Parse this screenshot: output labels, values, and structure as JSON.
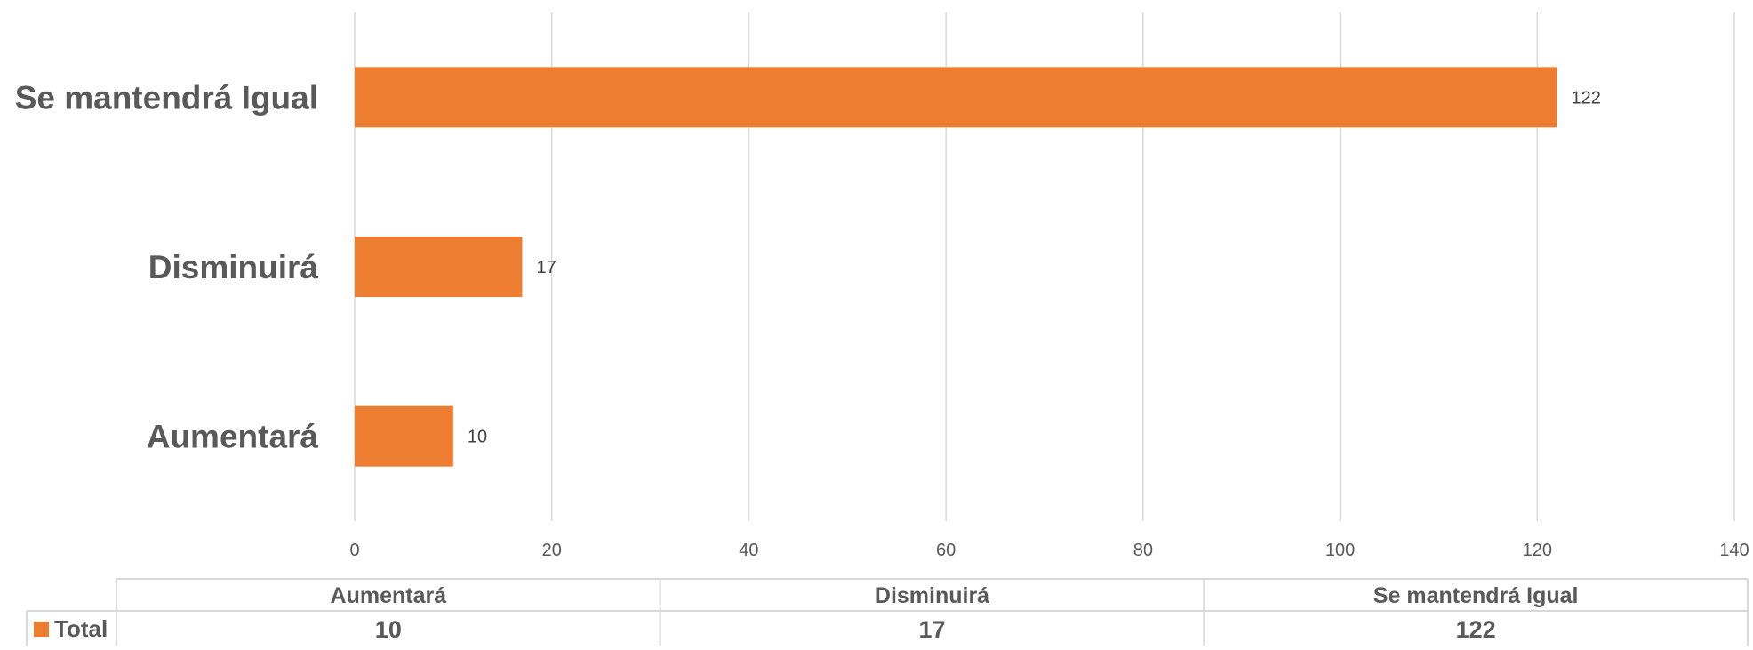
{
  "chart_data": {
    "type": "bar",
    "orientation": "horizontal",
    "categories": [
      "Aumentará",
      "Disminuirá",
      "Se mantendrá Igual"
    ],
    "series": [
      {
        "name": "Total",
        "values": [
          10,
          17,
          122
        ],
        "color": "#ED7D31"
      }
    ],
    "xlim": [
      0,
      140
    ],
    "x_ticks": [
      0,
      20,
      40,
      60,
      80,
      100,
      120,
      140
    ],
    "grid": true,
    "data_labels": true,
    "data_table": {
      "headers": [
        "Aumentará",
        "Disminuirá",
        "Se mantendrá Igual"
      ],
      "rows": [
        {
          "legend": "Total",
          "values": [
            "10",
            "17",
            "122"
          ]
        }
      ]
    }
  },
  "colors": {
    "bar": "#ED7D31",
    "grid": "#D9D9D9",
    "text": "#595959"
  }
}
